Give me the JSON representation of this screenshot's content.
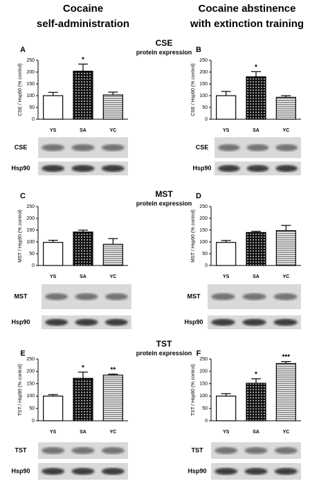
{
  "headers": [
    {
      "line1": "Cocaine",
      "line2": "self-administration"
    },
    {
      "line1": "Cocaine abstinence",
      "line2": "with extinction training"
    }
  ],
  "sections": [
    {
      "title": "CSE",
      "subtitle": "protein expression"
    },
    {
      "title": "MST",
      "subtitle": "protein expression"
    },
    {
      "title": "TST",
      "subtitle": "protein expression"
    }
  ],
  "chart_data": [
    {
      "type": "bar",
      "title": "A",
      "y_label": "CSE / Hsp90 (% control)",
      "categories": [
        "YS",
        "SA",
        "YC"
      ],
      "values": [
        100,
        204,
        103
      ],
      "errors": [
        14,
        30,
        12
      ],
      "significance": [
        null,
        "*",
        null
      ],
      "patterns": [
        "none",
        "crosshatch",
        "hlines"
      ],
      "color": "#000000",
      "ylim": [
        0,
        250
      ],
      "yticks": [
        0,
        50,
        100,
        150,
        200,
        250
      ],
      "blot_labels": [
        "CSE",
        "Hsp90"
      ]
    },
    {
      "type": "bar",
      "title": "B",
      "y_label": "CSE / Hsp90 (% control)",
      "categories": [
        "YS",
        "SA",
        "YC"
      ],
      "values": [
        100,
        180,
        93
      ],
      "errors": [
        18,
        22,
        7
      ],
      "significance": [
        null,
        "*",
        null
      ],
      "patterns": [
        "none",
        "crosshatch",
        "hlines"
      ],
      "color": "#000000",
      "ylim": [
        0,
        250
      ],
      "yticks": [
        0,
        50,
        100,
        150,
        200,
        250
      ],
      "blot_labels": [
        "CSE",
        "Hsp90"
      ]
    },
    {
      "type": "bar",
      "title": "C",
      "y_label": "MST / Hsp90 (% control)",
      "categories": [
        "YS",
        "SA",
        "YC"
      ],
      "values": [
        98,
        142,
        90
      ],
      "errors": [
        9,
        8,
        24
      ],
      "significance": [
        null,
        null,
        null
      ],
      "patterns": [
        "none",
        "crosshatch",
        "hlines"
      ],
      "color": "#000000",
      "ylim": [
        0,
        250
      ],
      "yticks": [
        0,
        50,
        100,
        150,
        200,
        250
      ],
      "blot_labels": [
        "MST",
        "Hsp90"
      ]
    },
    {
      "type": "bar",
      "title": "D",
      "y_label": "MST / Hsp90 (% control)",
      "categories": [
        "YS",
        "SA",
        "YC"
      ],
      "values": [
        98,
        140,
        148
      ],
      "errors": [
        8,
        5,
        22
      ],
      "significance": [
        null,
        null,
        null
      ],
      "patterns": [
        "none",
        "crosshatch",
        "hlines"
      ],
      "color": "#000000",
      "ylim": [
        0,
        250
      ],
      "yticks": [
        0,
        50,
        100,
        150,
        200,
        250
      ],
      "blot_labels": [
        "MST",
        "Hsp90"
      ]
    },
    {
      "type": "bar",
      "title": "E",
      "y_label": "TST / Hsp90 (% control)",
      "categories": [
        "YS",
        "SA",
        "YC"
      ],
      "values": [
        100,
        172,
        185
      ],
      "errors": [
        6,
        25,
        4
      ],
      "significance": [
        null,
        "*",
        "**"
      ],
      "patterns": [
        "none",
        "crosshatch",
        "hlines"
      ],
      "color": "#000000",
      "ylim": [
        0,
        250
      ],
      "yticks": [
        0,
        50,
        100,
        150,
        200,
        250
      ],
      "blot_labels": [
        "TST",
        "Hsp90"
      ]
    },
    {
      "type": "bar",
      "title": "F",
      "y_label": "TST / Hsp90 (% control)",
      "categories": [
        "YS",
        "SA",
        "YC"
      ],
      "values": [
        100,
        152,
        232
      ],
      "errors": [
        10,
        18,
        8
      ],
      "significance": [
        null,
        "*",
        "***"
      ],
      "patterns": [
        "none",
        "crosshatch",
        "hlines"
      ],
      "color": "#000000",
      "ylim": [
        0,
        250
      ],
      "yticks": [
        0,
        50,
        100,
        150,
        200,
        250
      ],
      "blot_labels": [
        "TST",
        "Hsp90"
      ]
    }
  ]
}
